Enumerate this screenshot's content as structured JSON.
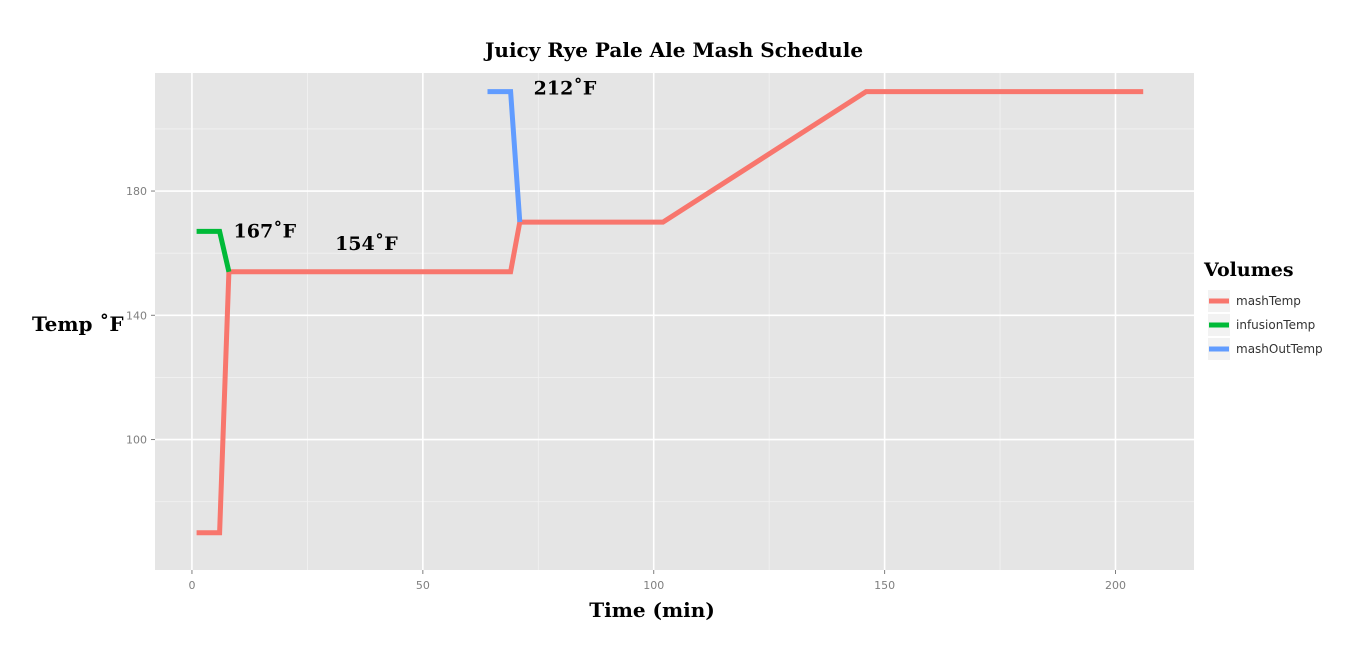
{
  "chart_data": {
    "type": "line",
    "title": "Juicy Rye Pale Ale Mash Schedule",
    "xlabel": "Time (min)",
    "ylabel": "Temp ˚F",
    "xlim": [
      -8,
      217
    ],
    "ylim": [
      58,
      218
    ],
    "x_ticks": [
      0,
      50,
      100,
      150,
      200
    ],
    "y_ticks": [
      100,
      140,
      180
    ],
    "grid": true,
    "legend_title": "Volumes",
    "legend_position": "right",
    "series": [
      {
        "name": "mashTemp",
        "color": "#f8766d",
        "points": [
          [
            1,
            70
          ],
          [
            6,
            70
          ],
          [
            8,
            154
          ],
          [
            69,
            154
          ],
          [
            71,
            170
          ],
          [
            102,
            170
          ],
          [
            146,
            212
          ],
          [
            206,
            212
          ]
        ]
      },
      {
        "name": "infusionTemp",
        "color": "#00ba38",
        "points": [
          [
            1,
            167
          ],
          [
            6,
            167
          ],
          [
            8,
            154
          ]
        ]
      },
      {
        "name": "mashOutTemp",
        "color": "#619cff",
        "points": [
          [
            64,
            212
          ],
          [
            69,
            212
          ],
          [
            71,
            170
          ]
        ]
      }
    ],
    "annotations": [
      {
        "text": "167˚F",
        "x": 9,
        "y": 165
      },
      {
        "text": "154˚F",
        "x": 31,
        "y": 161
      },
      {
        "text": "212˚F",
        "x": 74,
        "y": 211
      }
    ]
  }
}
